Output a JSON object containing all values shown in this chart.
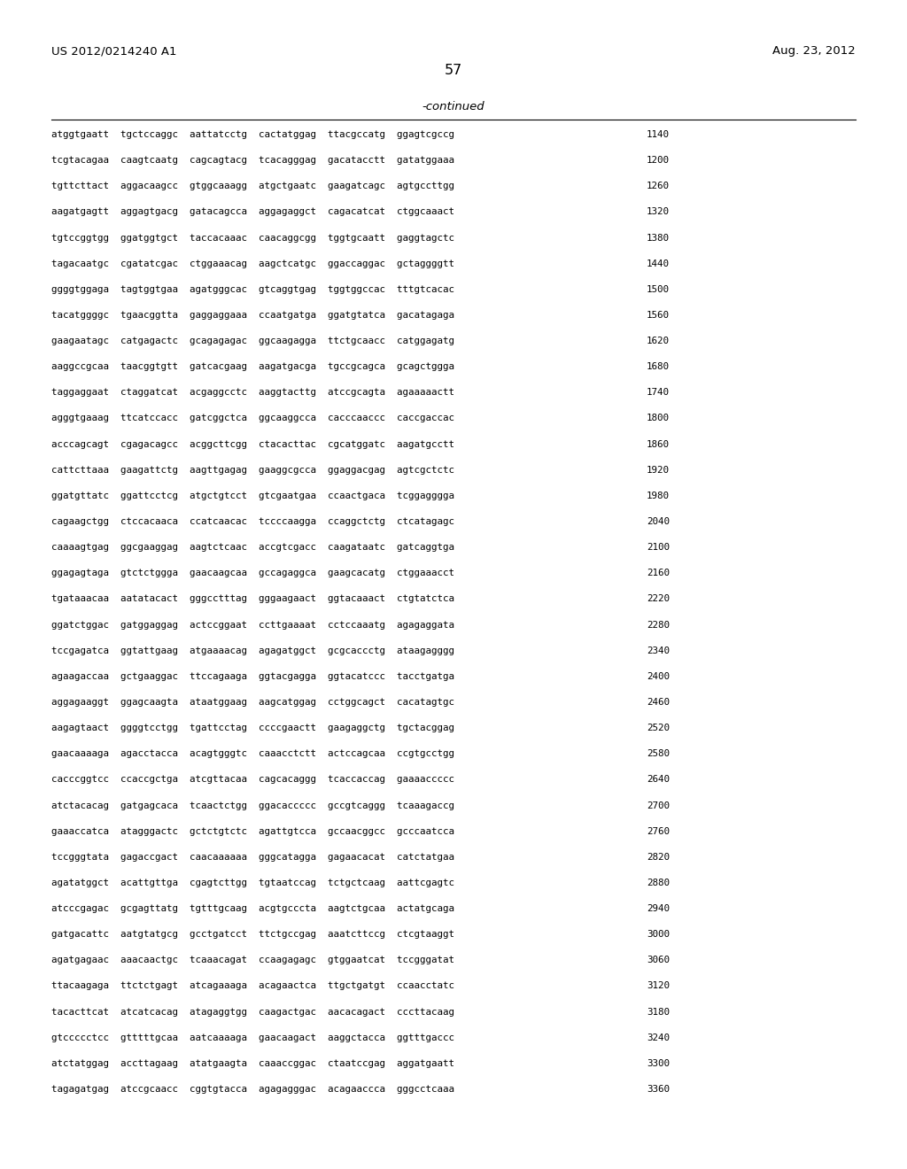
{
  "header_left": "US 2012/0214240 A1",
  "header_right": "Aug. 23, 2012",
  "page_number": "57",
  "continued_label": "-continued",
  "background_color": "#ffffff",
  "text_color": "#000000",
  "font_size_header": 9.5,
  "font_size_page": 11.5,
  "font_size_continued": 9.5,
  "font_size_sequence": 7.8,
  "sequence_lines": [
    [
      "atggtgaatt  tgctccaggc  aattatcctg  cactatggag  ttacgccatg  ggagtcgccg",
      "1140"
    ],
    [
      "tcgtacagaa  caagtcaatg  cagcagtacg  tcacagggag  gacatacctt  gatatggaaa",
      "1200"
    ],
    [
      "tgttcttact  aggacaagcc  gtggcaaagg  atgctgaatc  gaagatcagc  agtgccttgg",
      "1260"
    ],
    [
      "aagatgagtt  aggagtgacg  gatacagcca  aggagaggct  cagacatcat  ctggcaaact",
      "1320"
    ],
    [
      "tgtccggtgg  ggatggtgct  taccacaaac  caacaggcgg  tggtgcaatt  gaggtagctc",
      "1380"
    ],
    [
      "tagacaatgc  cgatatcgac  ctggaaacag  aagctcatgc  ggaccaggac  gctaggggtt",
      "1440"
    ],
    [
      "ggggtggaga  tagtggtgaa  agatgggcac  gtcaggtgag  tggtggccac  tttgtcacac",
      "1500"
    ],
    [
      "tacatggggc  tgaacggtta  gaggaggaaa  ccaatgatga  ggatgtatca  gacatagaga",
      "1560"
    ],
    [
      "gaagaatagc  catgagactc  gcagagagac  ggcaagagga  ttctgcaacc  catggagatg",
      "1620"
    ],
    [
      "aaggccgcaa  taacggtgtt  gatcacgaag  aagatgacga  tgccgcagca  gcagctggga",
      "1680"
    ],
    [
      "taggaggaat  ctaggatcat  acgaggcctc  aaggtacttg  atccgcagta  agaaaaactt",
      "1740"
    ],
    [
      "agggtgaaag  ttcatccacc  gatcggctca  ggcaaggcca  cacccaaccc  caccgaccac",
      "1800"
    ],
    [
      "acccagcagt  cgagacagcc  acggcttcgg  ctacacttac  cgcatggatc  aagatgcctt",
      "1860"
    ],
    [
      "cattcttaaa  gaagattctg  aagttgagag  gaaggcgcca  ggaggacgag  agtcgctctc",
      "1920"
    ],
    [
      "ggatgttatc  ggattcctcg  atgctgtcct  gtcgaatgaa  ccaactgaca  tcggagggga",
      "1980"
    ],
    [
      "cagaagctgg  ctccacaaca  ccatcaacac  tccccaagga  ccaggctctg  ctcatagagc",
      "2040"
    ],
    [
      "caaaagtgag  ggcgaaggag  aagtctcaac  accgtcgacc  caagataatc  gatcaggtga",
      "2100"
    ],
    [
      "ggagagtaga  gtctctggga  gaacaagcaa  gccagaggca  gaagcacatg  ctggaaacct",
      "2160"
    ],
    [
      "tgataaacaa  aatatacact  gggcctttag  gggaagaact  ggtacaaact  ctgtatctca",
      "2220"
    ],
    [
      "ggatctggac  gatggaggag  actccggaat  ccttgaaaat  cctccaaatg  agagaggata",
      "2280"
    ],
    [
      "tccgagatca  ggtattgaag  atgaaaacag  agagatggct  gcgcaccctg  ataagagggg",
      "2340"
    ],
    [
      "agaagaccaa  gctgaaggac  ttccagaaga  ggtacgagga  ggtacatccc  tacctgatga",
      "2400"
    ],
    [
      "aggagaaggt  ggagcaagta  ataatggaag  aagcatggag  cctggcagct  cacatagtgc",
      "2460"
    ],
    [
      "aagagtaact  ggggtcctgg  tgattcctag  ccccgaactt  gaagaggctg  tgctacggag",
      "2520"
    ],
    [
      "gaacaaaaga  agacctacca  acagtgggtc  caaacctctt  actccagcaa  ccgtgcctgg",
      "2580"
    ],
    [
      "cacccggtcc  ccaccgctga  atcgttacaa  cagcacaggg  tcaccaccag  gaaaaccccc",
      "2640"
    ],
    [
      "atctacacag  gatgagcaca  tcaactctgg  ggacaccccc  gccgtcaggg  tcaaagaccg",
      "2700"
    ],
    [
      "gaaaccatca  atagggactc  gctctgtctc  agattgtcca  gccaacggcc  gcccaatcca",
      "2760"
    ],
    [
      "tccgggtata  gagaccgact  caacaaaaaa  gggcatagga  gagaacacat  catctatgaa",
      "2820"
    ],
    [
      "agatatggct  acattgttga  cgagtcttgg  tgtaatccag  tctgctcaag  aattcgagtc",
      "2880"
    ],
    [
      "atcccgagac  gcgagttatg  tgtttgcaag  acgtgcccta  aagtctgcaa  actatgcaga",
      "2940"
    ],
    [
      "gatgacattc  aatgtatgcg  gcctgatcct  ttctgccgag  aaatcttccg  ctcgtaaggt",
      "3000"
    ],
    [
      "agatgagaac  aaacaactgc  tcaaacagat  ccaagagagc  gtggaatcat  tccgggatat",
      "3060"
    ],
    [
      "ttacaagaga  ttctctgagt  atcagaaaga  acagaactca  ttgctgatgt  ccaacctatc",
      "3120"
    ],
    [
      "tacacttcat  atcatcacag  atagaggtgg  caagactgac  aacacagact  cccttacaag",
      "3180"
    ],
    [
      "gtccccctcc  gtttttgcaa  aatcaaaaga  gaacaagact  aaggctacca  ggtttgaccc",
      "3240"
    ],
    [
      "atctatggag  accttagaag  atatgaagta  caaaccggac  ctaatccgag  aggatgaatt",
      "3300"
    ],
    [
      "tagagatgag  atccgcaacc  cggtgtacca  agagagggac  acagaaccca  gggcctcaaa",
      "3360"
    ]
  ]
}
